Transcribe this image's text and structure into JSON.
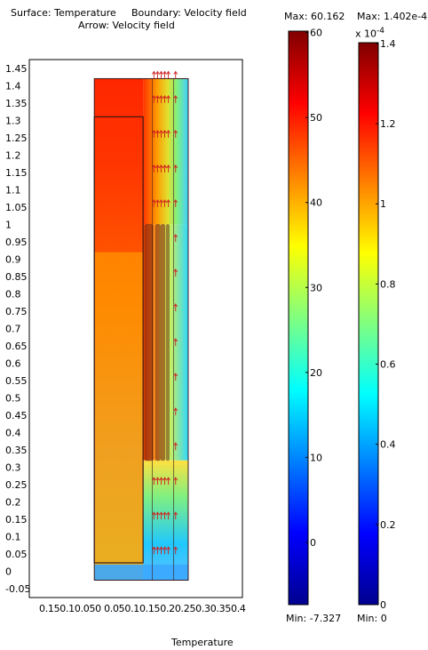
{
  "chart_data": {
    "type": "heatmap",
    "title_lines": {
      "surface": "Surface: Temperature",
      "boundary": "Boundary: Velocity field",
      "arrow": "Arrow: Velocity field"
    },
    "xlabel": "Temperature",
    "x_ticks": [
      "0.15",
      "0.1",
      "0.05",
      "0",
      "0.05",
      "0.1",
      "0.15",
      "0.2",
      "0.25",
      "0.3",
      "0.35",
      "0.4"
    ],
    "x_ticks_text": "0.150.10.050 0.050.10.150.20.250.30.350.4",
    "y_ticks": [
      1.45,
      1.4,
      1.35,
      1.3,
      1.25,
      1.2,
      1.15,
      1.1,
      1.05,
      1,
      0.95,
      0.9,
      0.85,
      0.8,
      0.75,
      0.7,
      0.65,
      0.6,
      0.55,
      0.5,
      0.45,
      0.4,
      0.35,
      0.3,
      0.25,
      0.2,
      0.15,
      0.1,
      0.05,
      0,
      -0.05
    ],
    "xlim": [
      -0.18,
      0.41
    ],
    "ylim": [
      -0.075,
      1.475
    ],
    "domain": {
      "x": [
        0,
        0.26
      ],
      "y": [
        -0.025,
        1.42
      ]
    },
    "temperature_colorbar": {
      "max_label": "Max: 60.162",
      "min_label": "Min: -7.327",
      "max": 60.162,
      "min": -7.327,
      "ticks": [
        60,
        50,
        40,
        30,
        20,
        10,
        0
      ]
    },
    "velocity_colorbar": {
      "max_label": "Max: 1.402e-4",
      "min_label": "Min: 0",
      "scale_label": "x 10",
      "scale_exponent": "-4",
      "max": 1.402,
      "min": 0,
      "ticks": [
        1.4,
        1.2,
        1,
        0.8,
        0.6,
        0.4,
        0.2,
        0
      ]
    },
    "colormap": [
      "#00008f",
      "#0000ff",
      "#0080ff",
      "#00ffff",
      "#80ff80",
      "#ffff00",
      "#ff8000",
      "#ff0000",
      "#800000"
    ],
    "boundary_color": "#3a1a1a",
    "arrow_color": "#d02020",
    "fin_color": "#5a1010"
  }
}
